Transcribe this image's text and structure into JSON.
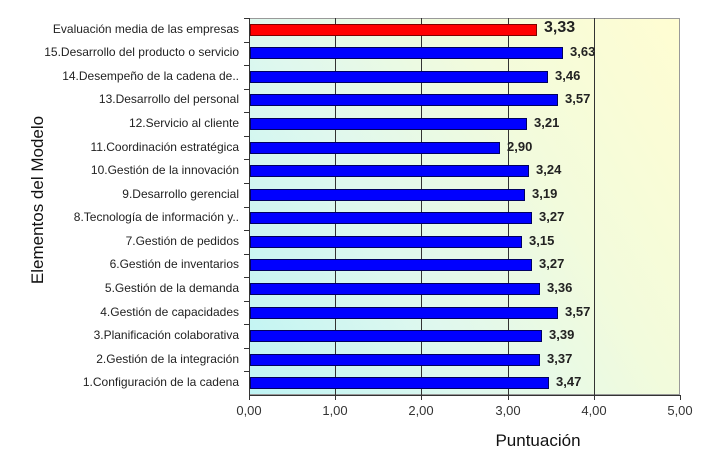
{
  "chart_data": {
    "type": "bar",
    "orientation": "horizontal",
    "title": "",
    "xlabel": "Puntuación",
    "ylabel": "Elementos del Modelo",
    "xlim": [
      0,
      5
    ],
    "x_ticks": [
      "0,00",
      "1,00",
      "2,00",
      "3,00",
      "4,00",
      "5,00"
    ],
    "grid": true,
    "legend": null,
    "categories": [
      "Evaluación media de las empresas",
      "15.Desarrollo del producto o servicio",
      "14.Desempeño de la cadena de..",
      "13.Desarrollo del personal",
      "12.Servicio al cliente",
      "11.Coordinación estratégica",
      "10.Gestión de la innovación",
      "9.Desarrollo gerencial",
      "8.Tecnología de información y..",
      "7.Gestión de pedidos",
      "6.Gestión de inventarios",
      "5.Gestión de la demanda",
      "4.Gestión de capacidades",
      "3.Planificación colaborativa",
      "2.Gestión de la integración",
      "1.Configuración de la cadena"
    ],
    "values": [
      3.33,
      3.63,
      3.46,
      3.57,
      3.21,
      2.9,
      3.24,
      3.19,
      3.27,
      3.15,
      3.27,
      3.36,
      3.57,
      3.39,
      3.37,
      3.47
    ],
    "value_labels": [
      "3,33",
      "3,63",
      "3,46",
      "3,57",
      "3,21",
      "2,90",
      "3,24",
      "3,19",
      "3,27",
      "3,15",
      "3,27",
      "3,36",
      "3,57",
      "3,39",
      "3,37",
      "3,47"
    ],
    "colors": {
      "highlight": "#ff0000",
      "bars": "#0000ff",
      "bar_border": "#000060",
      "plot_bg_left": "#bff4f4",
      "plot_bg_right": "#fffdd2"
    }
  }
}
